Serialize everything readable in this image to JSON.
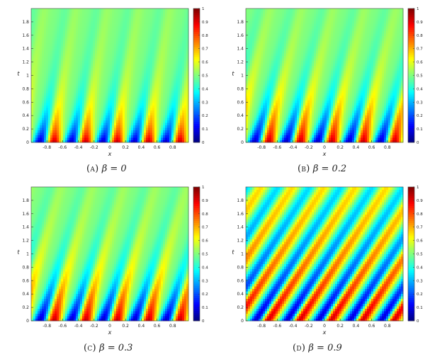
{
  "chart_data": [
    {
      "type": "heatmap",
      "caption_label": "(a)",
      "caption_param": "β = 0",
      "beta": 0,
      "xlabel": "x",
      "ylabel": "t",
      "xlim": [
        -1,
        1
      ],
      "ylim": [
        0,
        2
      ],
      "xticks": [
        "-0.8",
        "-0.6",
        "-0.4",
        "-0.2",
        "0",
        "0.2",
        "0.4",
        "0.6",
        "0.8"
      ],
      "yticks": [
        "0",
        "0.2",
        "0.4",
        "0.6",
        "0.8",
        "1",
        "1.2",
        "1.4",
        "1.6",
        "1.8"
      ],
      "colorbar": {
        "range": [
          0,
          1
        ],
        "ticks": [
          "0",
          "0.1",
          "0.2",
          "0.3",
          "0.4",
          "0.5",
          "0.6",
          "0.7",
          "0.8",
          "0.9",
          "1"
        ]
      },
      "colormap": "jet"
    },
    {
      "type": "heatmap",
      "caption_label": "(b)",
      "caption_param": "β = 0.2",
      "beta": 0.2,
      "xlabel": "x",
      "ylabel": "t",
      "xlim": [
        -1,
        1
      ],
      "ylim": [
        0,
        2
      ],
      "xticks": [
        "-0.8",
        "-0.6",
        "-0.4",
        "-0.2",
        "0",
        "0.2",
        "0.4",
        "0.6",
        "0.8"
      ],
      "yticks": [
        "0",
        "0.2",
        "0.4",
        "0.6",
        "0.8",
        "1",
        "1.2",
        "1.4",
        "1.6",
        "1.8"
      ],
      "colorbar": {
        "range": [
          0,
          1
        ],
        "ticks": [
          "0",
          "0.1",
          "0.2",
          "0.3",
          "0.4",
          "0.5",
          "0.6",
          "0.7",
          "0.8",
          "0.9",
          "1"
        ]
      },
      "colormap": "jet"
    },
    {
      "type": "heatmap",
      "caption_label": "(c)",
      "caption_param": "β = 0.3",
      "beta": 0.3,
      "xlabel": "x",
      "ylabel": "t",
      "xlim": [
        -1,
        1
      ],
      "ylim": [
        0,
        2
      ],
      "xticks": [
        "-0.8",
        "-0.6",
        "-0.4",
        "-0.2",
        "0",
        "0.2",
        "0.4",
        "0.6",
        "0.8"
      ],
      "yticks": [
        "0",
        "0.2",
        "0.4",
        "0.6",
        "0.8",
        "1",
        "1.2",
        "1.4",
        "1.6",
        "1.8"
      ],
      "colorbar": {
        "range": [
          0,
          1
        ],
        "ticks": [
          "0",
          "0.1",
          "0.2",
          "0.3",
          "0.4",
          "0.5",
          "0.6",
          "0.7",
          "0.8",
          "0.9",
          "1"
        ]
      },
      "colormap": "jet"
    },
    {
      "type": "heatmap",
      "caption_label": "(d)",
      "caption_param": "β = 0.9",
      "beta": 0.9,
      "xlabel": "x",
      "ylabel": "t",
      "xlim": [
        -1,
        1
      ],
      "ylim": [
        0,
        2
      ],
      "xticks": [
        "-0.8",
        "-0.6",
        "-0.4",
        "-0.2",
        "0",
        "0.2",
        "0.4",
        "0.6",
        "0.8"
      ],
      "yticks": [
        "0",
        "0.2",
        "0.4",
        "0.6",
        "0.8",
        "1",
        "1.2",
        "1.4",
        "1.6",
        "1.8"
      ],
      "colorbar": {
        "range": [
          0,
          1
        ],
        "ticks": [
          "0",
          "0.1",
          "0.2",
          "0.3",
          "0.4",
          "0.5",
          "0.6",
          "0.7",
          "0.8",
          "0.9",
          "1"
        ]
      },
      "colormap": "jet"
    }
  ]
}
